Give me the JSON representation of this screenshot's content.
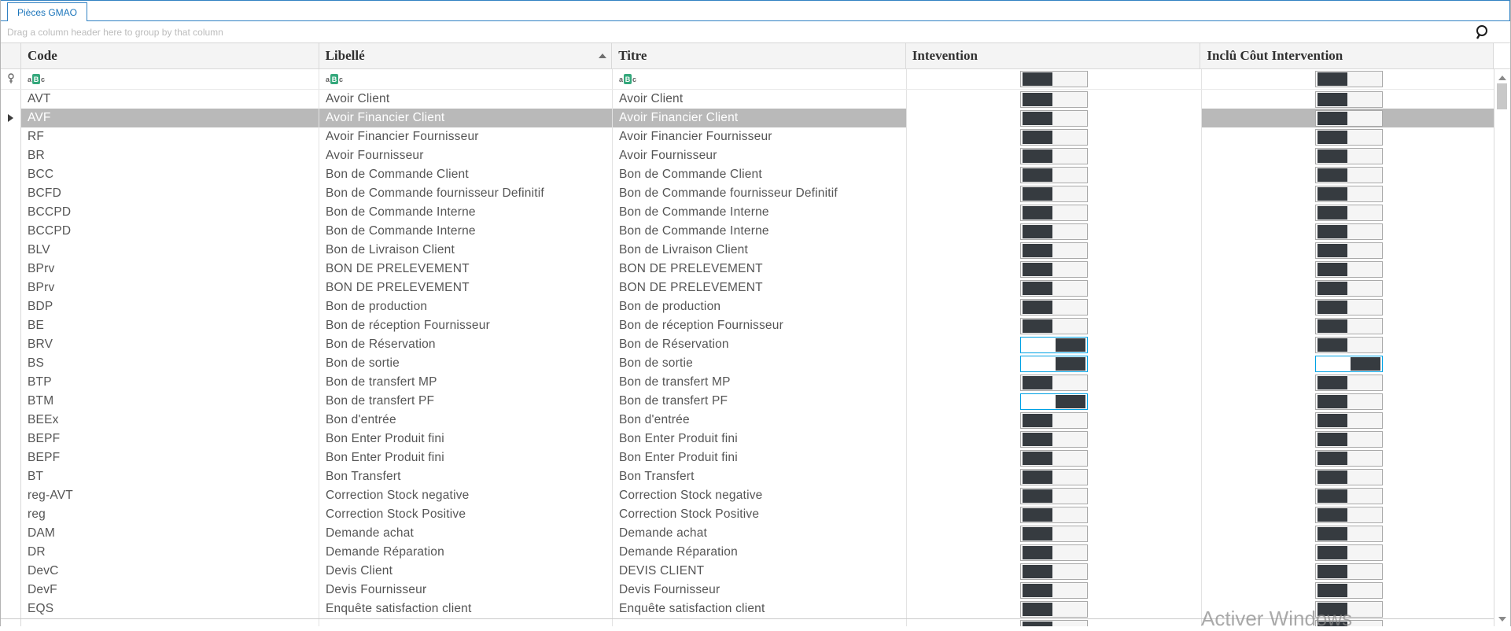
{
  "tab": {
    "label": "Pièces GMAO"
  },
  "group_panel": {
    "hint": "Drag a column header here to group by that column"
  },
  "icons": {
    "abc": [
      "a",
      "B",
      "c"
    ],
    "search": "magnifier",
    "filter_row": "pushpin",
    "sort": "ascending-arrow"
  },
  "columns": [
    {
      "label": "Code"
    },
    {
      "label": "Libellé",
      "sorted": "ascending"
    },
    {
      "label": "Titre"
    },
    {
      "label": "Intevention"
    },
    {
      "label": "Inclû Côut Intervention"
    }
  ],
  "rows": [
    {
      "code": "AVT",
      "libelle": "Avoir Client",
      "titre": "Avoir Client",
      "intervention": false,
      "inclu": false,
      "selected": false
    },
    {
      "code": "AVF",
      "libelle": "Avoir Financier Client",
      "titre": "Avoir Financier Client",
      "intervention": false,
      "inclu": false,
      "selected": true
    },
    {
      "code": "RF",
      "libelle": "Avoir Financier Fournisseur",
      "titre": "Avoir Financier Fournisseur",
      "intervention": false,
      "inclu": false,
      "selected": false
    },
    {
      "code": "BR",
      "libelle": "Avoir Fournisseur",
      "titre": "Avoir Fournisseur",
      "intervention": false,
      "inclu": false,
      "selected": false
    },
    {
      "code": "BCC",
      "libelle": "Bon de Commande Client",
      "titre": "Bon de Commande Client",
      "intervention": false,
      "inclu": false,
      "selected": false
    },
    {
      "code": "BCFD",
      "libelle": "Bon de Commande fournisseur Definitif",
      "titre": "Bon de Commande fournisseur Definitif",
      "intervention": false,
      "inclu": false,
      "selected": false
    },
    {
      "code": "BCCPD",
      "libelle": "Bon de Commande Interne",
      "titre": "Bon de Commande Interne",
      "intervention": false,
      "inclu": false,
      "selected": false
    },
    {
      "code": "BCCPD",
      "libelle": "Bon de Commande Interne",
      "titre": "Bon de Commande Interne",
      "intervention": false,
      "inclu": false,
      "selected": false
    },
    {
      "code": "BLV",
      "libelle": "Bon de Livraison Client",
      "titre": "Bon de Livraison Client",
      "intervention": false,
      "inclu": false,
      "selected": false
    },
    {
      "code": "BPrv",
      "libelle": "BON DE PRELEVEMENT",
      "titre": "BON DE PRELEVEMENT",
      "intervention": false,
      "inclu": false,
      "selected": false
    },
    {
      "code": "BPrv",
      "libelle": "BON DE PRELEVEMENT",
      "titre": "BON DE PRELEVEMENT",
      "intervention": false,
      "inclu": false,
      "selected": false
    },
    {
      "code": "BDP",
      "libelle": "Bon de production",
      "titre": "Bon de production",
      "intervention": false,
      "inclu": false,
      "selected": false
    },
    {
      "code": "BE",
      "libelle": "Bon de réception Fournisseur",
      "titre": "Bon de réception Fournisseur",
      "intervention": false,
      "inclu": false,
      "selected": false
    },
    {
      "code": "BRV",
      "libelle": "Bon de Réservation",
      "titre": "Bon de Réservation",
      "intervention": true,
      "intervention_focus": true,
      "inclu": false,
      "selected": false
    },
    {
      "code": "BS",
      "libelle": "Bon de sortie",
      "titre": "Bon de sortie",
      "intervention": true,
      "intervention_focus": true,
      "inclu": true,
      "inclu_focus": true,
      "selected": false
    },
    {
      "code": "BTP",
      "libelle": "Bon de transfert MP",
      "titre": "Bon de transfert MP",
      "intervention": false,
      "inclu": false,
      "selected": false
    },
    {
      "code": "BTM",
      "libelle": "Bon de transfert PF",
      "titre": "Bon de transfert PF",
      "intervention": true,
      "intervention_focus": true,
      "inclu": false,
      "selected": false
    },
    {
      "code": "BEEx",
      "libelle": "Bon d'entrée",
      "titre": "Bon d'entrée",
      "intervention": false,
      "inclu": false,
      "selected": false
    },
    {
      "code": "BEPF",
      "libelle": "Bon Enter Produit fini",
      "titre": "Bon Enter Produit fini",
      "intervention": false,
      "inclu": false,
      "selected": false
    },
    {
      "code": "BEPF",
      "libelle": "Bon Enter Produit fini",
      "titre": "Bon Enter Produit fini",
      "intervention": false,
      "inclu": false,
      "selected": false
    },
    {
      "code": "BT",
      "libelle": "Bon Transfert",
      "titre": "Bon Transfert",
      "intervention": false,
      "inclu": false,
      "selected": false
    },
    {
      "code": "reg-AVT",
      "libelle": "Correction Stock negative",
      "titre": "Correction Stock negative",
      "intervention": false,
      "inclu": false,
      "selected": false
    },
    {
      "code": "reg",
      "libelle": "Correction Stock Positive",
      "titre": "Correction Stock Positive",
      "intervention": false,
      "inclu": false,
      "selected": false
    },
    {
      "code": "DAM",
      "libelle": "Demande achat",
      "titre": "Demande achat",
      "intervention": false,
      "inclu": false,
      "selected": false
    },
    {
      "code": "DR",
      "libelle": "Demande Réparation",
      "titre": "Demande Réparation",
      "intervention": false,
      "inclu": false,
      "selected": false
    },
    {
      "code": "DevC",
      "libelle": "Devis Client",
      "titre": "DEVIS CLIENT",
      "intervention": false,
      "inclu": false,
      "selected": false
    },
    {
      "code": "DevF",
      "libelle": "Devis Fournisseur",
      "titre": "Devis Fournisseur",
      "intervention": false,
      "inclu": false,
      "selected": false
    },
    {
      "code": "EQS",
      "libelle": "Enquête satisfaction client",
      "titre": "Enquête satisfaction client",
      "intervention": false,
      "inclu": false,
      "selected": false
    },
    {
      "code": "",
      "libelle": "",
      "titre": "",
      "intervention": false,
      "inclu": false,
      "selected": false,
      "partial": true
    }
  ],
  "watermark": {
    "text": "Activer Windows"
  },
  "colors": {
    "accent_blue": "#3282c3",
    "focus_cyan": "#00a1e4",
    "selection_gray": "#b9b9b9",
    "toggle_thumb": "#363b40",
    "abc_green": "#35a87c"
  }
}
